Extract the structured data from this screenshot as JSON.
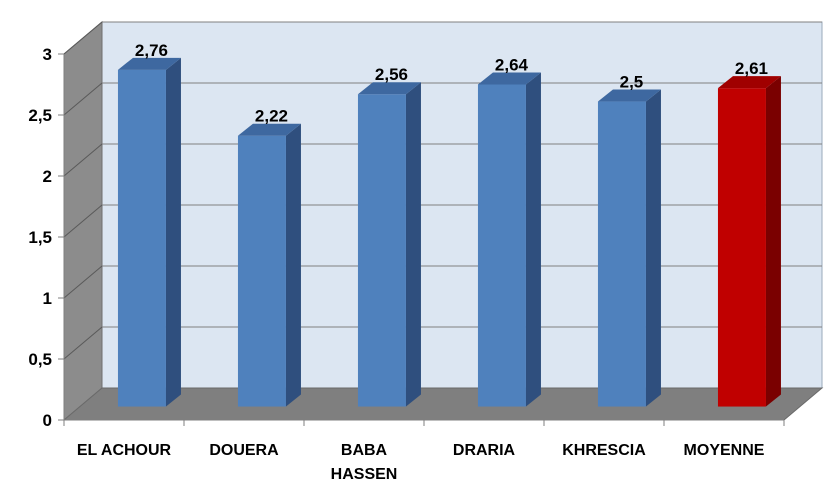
{
  "chart_data": {
    "type": "bar",
    "categories": [
      "EL ACHOUR",
      "DOUERA",
      "BABA HASSEN",
      "DRARIA",
      "KHRESCIA",
      "MOYENNE"
    ],
    "category_lines": [
      [
        "EL ACHOUR"
      ],
      [
        "DOUERA"
      ],
      [
        "BABA",
        "HASSEN"
      ],
      [
        "DRARIA"
      ],
      [
        "KHRESCIA"
      ],
      [
        "MOYENNE"
      ]
    ],
    "values": [
      2.76,
      2.22,
      2.56,
      2.64,
      2.5,
      2.61
    ],
    "value_labels": [
      "2,76",
      "2,22",
      "2,56",
      "2,64",
      "2,5",
      "2,61"
    ],
    "ylim": [
      0,
      3
    ],
    "yticks": [
      0,
      0.5,
      1,
      1.5,
      2,
      2.5,
      3
    ],
    "ytick_labels": [
      "0",
      "0,5",
      "1",
      "1,5",
      "2",
      "2,5",
      "3"
    ],
    "grid": true,
    "three_d": true,
    "colors": {
      "bar": "#4F81BD",
      "bar_side": "#2F4F7E",
      "bar_top": "#3E68A0",
      "highlight": "#C00000",
      "highlight_side": "#7A0000",
      "highlight_top": "#A00000",
      "back_wall": "#DCE6F2",
      "side_wall": "#8C8C8C",
      "floor": "#7F7F7F",
      "gridline": "#808080"
    },
    "highlight_index": 5
  }
}
